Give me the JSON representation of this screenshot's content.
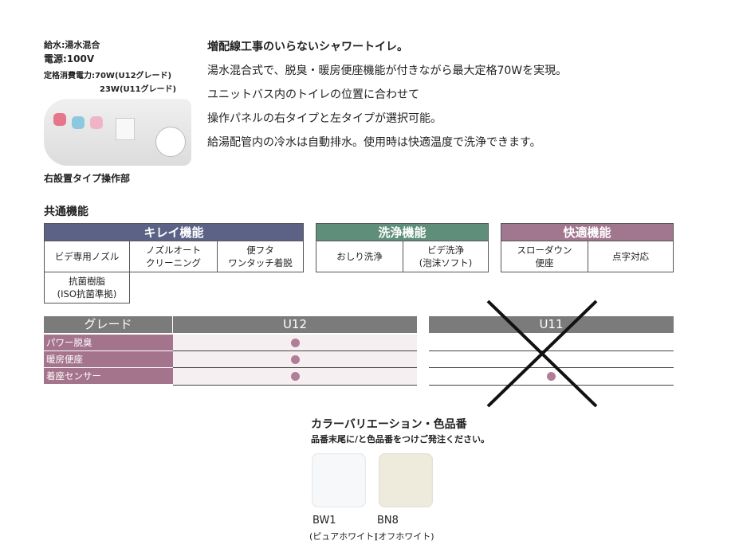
{
  "specs": {
    "water": "給水:湯水混合",
    "power": "電源:100V",
    "rated1": "定格消費電力:70W(U12グレード)",
    "rated2": "23W(U11グレード)",
    "panel_caption": "右設置タイプ操作部"
  },
  "lead": [
    "増配線工事のいらないシャワートイレ。",
    "湯水混合式で、脱臭・暖房便座機能が付きながら最大定格70Wを実現。",
    "ユニットバス内のトイレの位置に合わせて",
    "操作パネルの右タイプと左タイプが選択可能。",
    "給湯配管内の冷水は自動排水。使用時は快適温度で洗浄できます。"
  ],
  "common_title": "共通機能",
  "features": [
    {
      "title": "キレイ機能",
      "color": "#5b6285",
      "items": [
        "ビデ専用ノズル",
        "ノズルオート\nクリーニング",
        "便フタ\nワンタッチ着脱",
        "抗菌樹脂\n(ISO抗菌準拠)"
      ]
    },
    {
      "title": "洗浄機能",
      "color": "#5f8f7b",
      "items": [
        "おしり洗浄",
        "ビデ洗浄\n(泡沫ソフト)"
      ]
    },
    {
      "title": "快適機能",
      "color": "#a1768f",
      "items": [
        "スローダウン\n便座",
        "点字対応"
      ]
    }
  ],
  "grade": {
    "header": "グレード",
    "u12": "U12",
    "u11": "U11",
    "u11_crossed_out": true,
    "rows": [
      {
        "label": "パワー脱臭",
        "u12": true,
        "u11": false
      },
      {
        "label": "暖房便座",
        "u12": true,
        "u11": false
      },
      {
        "label": "着座センサー",
        "u12": true,
        "u11": true
      }
    ]
  },
  "colors": {
    "title": "カラーバリエーション・色品番",
    "note": "品番末尾に/と色品番をつけご発注ください。",
    "items": [
      {
        "code": "BW1",
        "name": "(ピュアホワイト)",
        "hex": "#f7f8fa"
      },
      {
        "code": "BN8",
        "name": "(オフホワイト)",
        "hex": "#eeebdd"
      }
    ]
  }
}
